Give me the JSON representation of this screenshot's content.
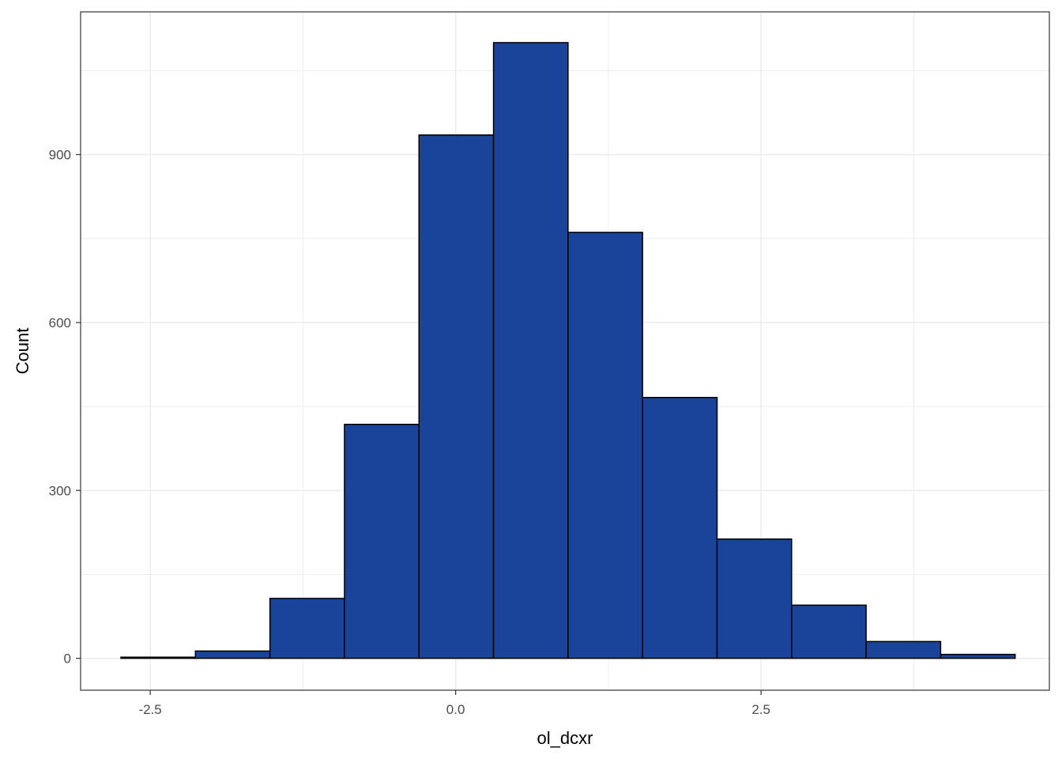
{
  "chart_data": {
    "type": "bar",
    "subtype": "histogram",
    "title": "",
    "xlabel": "ol_dcxr",
    "ylabel": "Count",
    "xlim": [
      -3.07,
      4.86
    ],
    "ylim": [
      -57,
      1155
    ],
    "x_ticks": [
      {
        "value": -2.5,
        "label": "-2.5"
      },
      {
        "value": 0.0,
        "label": "0.0"
      },
      {
        "value": 2.5,
        "label": "2.5"
      }
    ],
    "y_ticks": [
      {
        "value": 0,
        "label": "0"
      },
      {
        "value": 300,
        "label": "300"
      },
      {
        "value": 600,
        "label": "600"
      },
      {
        "value": 900,
        "label": "900"
      }
    ],
    "x_minor_breaks": [
      -1.25,
      1.25,
      3.75
    ],
    "y_minor_breaks": [
      150,
      450,
      750,
      1050
    ],
    "bins": [
      {
        "x0": -2.74,
        "x1": -2.13,
        "count": 2
      },
      {
        "x0": -2.13,
        "x1": -1.52,
        "count": 13
      },
      {
        "x0": -1.52,
        "x1": -0.91,
        "count": 107
      },
      {
        "x0": -0.91,
        "x1": -0.3,
        "count": 418
      },
      {
        "x0": -0.3,
        "x1": 0.31,
        "count": 935
      },
      {
        "x0": 0.31,
        "x1": 0.92,
        "count": 1100
      },
      {
        "x0": 0.92,
        "x1": 1.53,
        "count": 761
      },
      {
        "x0": 1.53,
        "x1": 2.14,
        "count": 466
      },
      {
        "x0": 2.14,
        "x1": 2.75,
        "count": 213
      },
      {
        "x0": 2.75,
        "x1": 3.36,
        "count": 95
      },
      {
        "x0": 3.36,
        "x1": 3.97,
        "count": 30
      },
      {
        "x0": 3.97,
        "x1": 4.58,
        "count": 7
      }
    ],
    "colors": {
      "fill": "#1a4499",
      "stroke": "#000000",
      "grid": "#ebebeb",
      "panel_border": "#333333"
    },
    "grid": true,
    "legend": "none"
  }
}
